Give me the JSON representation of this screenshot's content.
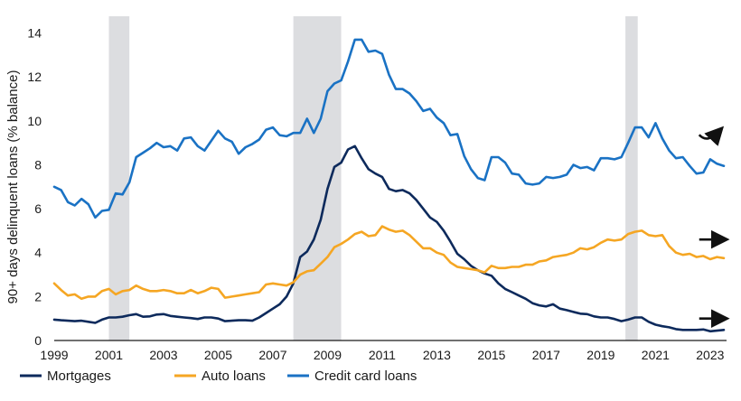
{
  "chart_data": {
    "type": "line",
    "ylabel": "90+ days delinquent loans (% balance)",
    "xlabel": "",
    "xlim": [
      1999.0,
      2023.6
    ],
    "ylim": [
      0,
      14.6
    ],
    "x_ticks": [
      "1999",
      "2001",
      "2003",
      "2005",
      "2007",
      "2009",
      "2011",
      "2013",
      "2015",
      "2017",
      "2019",
      "2021",
      "2023"
    ],
    "y_ticks": [
      "0",
      "2",
      "4",
      "6",
      "8",
      "10",
      "12",
      "14"
    ],
    "grid": false,
    "legend_position": "bottom",
    "recessions": [
      [
        2001.0,
        2001.75
      ],
      [
        2007.75,
        2009.5
      ],
      [
        2019.9,
        2020.35
      ]
    ],
    "series": [
      {
        "name": "Mortgages",
        "color": "#0d2a5c",
        "x": [
          1999.0,
          1999.25,
          1999.5,
          1999.75,
          2000.0,
          2000.25,
          2000.5,
          2000.75,
          2001.0,
          2001.25,
          2001.5,
          2001.75,
          2002.0,
          2002.25,
          2002.5,
          2002.75,
          2003.0,
          2003.25,
          2003.5,
          2003.75,
          2004.0,
          2004.25,
          2004.5,
          2004.75,
          2005.0,
          2005.25,
          2005.5,
          2005.75,
          2006.0,
          2006.25,
          2006.5,
          2006.75,
          2007.0,
          2007.25,
          2007.5,
          2007.75,
          2008.0,
          2008.25,
          2008.5,
          2008.75,
          2009.0,
          2009.25,
          2009.5,
          2009.75,
          2010.0,
          2010.25,
          2010.5,
          2010.75,
          2011.0,
          2011.25,
          2011.5,
          2011.75,
          2012.0,
          2012.25,
          2012.5,
          2012.75,
          2013.0,
          2013.25,
          2013.5,
          2013.75,
          2014.0,
          2014.25,
          2014.5,
          2014.75,
          2015.0,
          2015.25,
          2015.5,
          2015.75,
          2016.0,
          2016.25,
          2016.5,
          2016.75,
          2017.0,
          2017.25,
          2017.5,
          2017.75,
          2018.0,
          2018.25,
          2018.5,
          2018.75,
          2019.0,
          2019.25,
          2019.5,
          2019.75,
          2020.0,
          2020.25,
          2020.5,
          2020.75,
          2021.0,
          2021.25,
          2021.5,
          2021.75,
          2022.0,
          2022.25,
          2022.5,
          2022.75,
          2023.0,
          2023.25,
          2023.5
        ],
        "values": [
          0.95,
          0.92,
          0.9,
          0.88,
          0.9,
          0.85,
          0.8,
          0.95,
          1.05,
          1.05,
          1.08,
          1.15,
          1.2,
          1.08,
          1.1,
          1.18,
          1.2,
          1.12,
          1.08,
          1.05,
          1.02,
          0.98,
          1.05,
          1.05,
          1.0,
          0.88,
          0.9,
          0.92,
          0.92,
          0.9,
          1.05,
          1.25,
          1.45,
          1.65,
          2.0,
          2.6,
          3.8,
          4.05,
          4.6,
          5.5,
          6.9,
          7.9,
          8.1,
          8.7,
          8.85,
          8.3,
          7.8,
          7.6,
          7.45,
          6.9,
          6.8,
          6.85,
          6.7,
          6.4,
          6.0,
          5.6,
          5.4,
          5.0,
          4.5,
          3.95,
          3.7,
          3.4,
          3.2,
          3.05,
          2.95,
          2.6,
          2.35,
          2.2,
          2.05,
          1.9,
          1.7,
          1.6,
          1.55,
          1.65,
          1.45,
          1.38,
          1.3,
          1.22,
          1.2,
          1.1,
          1.05,
          1.05,
          0.98,
          0.88,
          0.95,
          1.05,
          1.05,
          0.85,
          0.72,
          0.65,
          0.6,
          0.52,
          0.48,
          0.48,
          0.48,
          0.5,
          0.42,
          0.45,
          0.48
        ]
      },
      {
        "name": "Auto loans",
        "color": "#f5a623",
        "x": [
          1999.0,
          1999.25,
          1999.5,
          1999.75,
          2000.0,
          2000.25,
          2000.5,
          2000.75,
          2001.0,
          2001.25,
          2001.5,
          2001.75,
          2002.0,
          2002.25,
          2002.5,
          2002.75,
          2003.0,
          2003.25,
          2003.5,
          2003.75,
          2004.0,
          2004.25,
          2004.5,
          2004.75,
          2005.0,
          2005.25,
          2005.5,
          2005.75,
          2006.0,
          2006.25,
          2006.5,
          2006.75,
          2007.0,
          2007.25,
          2007.5,
          2007.75,
          2008.0,
          2008.25,
          2008.5,
          2008.75,
          2009.0,
          2009.25,
          2009.5,
          2009.75,
          2010.0,
          2010.25,
          2010.5,
          2010.75,
          2011.0,
          2011.25,
          2011.5,
          2011.75,
          2012.0,
          2012.25,
          2012.5,
          2012.75,
          2013.0,
          2013.25,
          2013.5,
          2013.75,
          2014.0,
          2014.25,
          2014.5,
          2014.75,
          2015.0,
          2015.25,
          2015.5,
          2015.75,
          2016.0,
          2016.25,
          2016.5,
          2016.75,
          2017.0,
          2017.25,
          2017.5,
          2017.75,
          2018.0,
          2018.25,
          2018.5,
          2018.75,
          2019.0,
          2019.25,
          2019.5,
          2019.75,
          2020.0,
          2020.25,
          2020.5,
          2020.75,
          2021.0,
          2021.25,
          2021.5,
          2021.75,
          2022.0,
          2022.25,
          2022.5,
          2022.75,
          2023.0,
          2023.25,
          2023.5
        ],
        "values": [
          2.6,
          2.3,
          2.05,
          2.1,
          1.9,
          2.0,
          2.0,
          2.25,
          2.35,
          2.1,
          2.25,
          2.3,
          2.5,
          2.35,
          2.25,
          2.25,
          2.3,
          2.25,
          2.15,
          2.15,
          2.3,
          2.15,
          2.25,
          2.4,
          2.35,
          1.95,
          2.0,
          2.05,
          2.1,
          2.15,
          2.2,
          2.55,
          2.6,
          2.55,
          2.5,
          2.65,
          3.0,
          3.15,
          3.2,
          3.5,
          3.8,
          4.25,
          4.4,
          4.6,
          4.85,
          4.95,
          4.75,
          4.8,
          5.2,
          5.05,
          4.95,
          5.0,
          4.8,
          4.5,
          4.2,
          4.2,
          4.0,
          3.9,
          3.55,
          3.35,
          3.3,
          3.25,
          3.2,
          3.1,
          3.4,
          3.3,
          3.3,
          3.35,
          3.35,
          3.45,
          3.45,
          3.6,
          3.65,
          3.8,
          3.85,
          3.9,
          4.0,
          4.2,
          4.15,
          4.25,
          4.45,
          4.6,
          4.55,
          4.6,
          4.85,
          4.95,
          5.0,
          4.8,
          4.75,
          4.8,
          4.3,
          4.0,
          3.9,
          3.95,
          3.8,
          3.85,
          3.7,
          3.8,
          3.75
        ]
      },
      {
        "name": "Credit card loans",
        "color": "#1a72c4",
        "x": [
          1999.0,
          1999.25,
          1999.5,
          1999.75,
          2000.0,
          2000.25,
          2000.5,
          2000.75,
          2001.0,
          2001.25,
          2001.5,
          2001.75,
          2002.0,
          2002.25,
          2002.5,
          2002.75,
          2003.0,
          2003.25,
          2003.5,
          2003.75,
          2004.0,
          2004.25,
          2004.5,
          2004.75,
          2005.0,
          2005.25,
          2005.5,
          2005.75,
          2006.0,
          2006.25,
          2006.5,
          2006.75,
          2007.0,
          2007.25,
          2007.5,
          2007.75,
          2008.0,
          2008.25,
          2008.5,
          2008.75,
          2009.0,
          2009.25,
          2009.5,
          2009.75,
          2010.0,
          2010.25,
          2010.5,
          2010.75,
          2011.0,
          2011.25,
          2011.5,
          2011.75,
          2012.0,
          2012.25,
          2012.5,
          2012.75,
          2013.0,
          2013.25,
          2013.5,
          2013.75,
          2014.0,
          2014.25,
          2014.5,
          2014.75,
          2015.0,
          2015.25,
          2015.5,
          2015.75,
          2016.0,
          2016.25,
          2016.5,
          2016.75,
          2017.0,
          2017.25,
          2017.5,
          2017.75,
          2018.0,
          2018.25,
          2018.5,
          2018.75,
          2019.0,
          2019.25,
          2019.5,
          2019.75,
          2020.0,
          2020.25,
          2020.5,
          2020.75,
          2021.0,
          2021.25,
          2021.5,
          2021.75,
          2022.0,
          2022.25,
          2022.5,
          2022.75,
          2023.0,
          2023.25,
          2023.5
        ],
        "values": [
          7.0,
          6.85,
          6.3,
          6.15,
          6.45,
          6.2,
          5.6,
          5.9,
          5.95,
          6.7,
          6.65,
          7.2,
          8.35,
          8.55,
          8.75,
          9.0,
          8.8,
          8.85,
          8.65,
          9.2,
          9.25,
          8.85,
          8.65,
          9.1,
          9.55,
          9.2,
          9.05,
          8.5,
          8.8,
          8.95,
          9.15,
          9.6,
          9.7,
          9.35,
          9.3,
          9.45,
          9.45,
          10.1,
          9.45,
          10.1,
          11.35,
          11.7,
          11.85,
          12.7,
          13.7,
          13.7,
          13.15,
          13.2,
          13.05,
          12.1,
          11.45,
          11.45,
          11.25,
          10.9,
          10.45,
          10.55,
          10.15,
          9.9,
          9.35,
          9.4,
          8.4,
          7.8,
          7.4,
          7.3,
          8.35,
          8.35,
          8.1,
          7.6,
          7.55,
          7.15,
          7.1,
          7.15,
          7.45,
          7.4,
          7.45,
          7.55,
          8.0,
          7.85,
          7.9,
          7.75,
          8.3,
          8.3,
          8.25,
          8.35,
          9.0,
          9.7,
          9.7,
          9.25,
          9.9,
          9.2,
          8.65,
          8.3,
          8.35,
          7.95,
          7.6,
          7.65,
          8.25,
          8.05,
          7.95
        ]
      }
    ],
    "annotations": [
      {
        "type": "arrow-up-curve",
        "x": 2022.6,
        "y": 9.2,
        "color": "#111111"
      },
      {
        "type": "arrow-right",
        "x": 2022.6,
        "y": 4.6,
        "color": "#111111"
      },
      {
        "type": "arrow-right",
        "x": 2022.6,
        "y": 1.0,
        "color": "#111111"
      }
    ]
  }
}
